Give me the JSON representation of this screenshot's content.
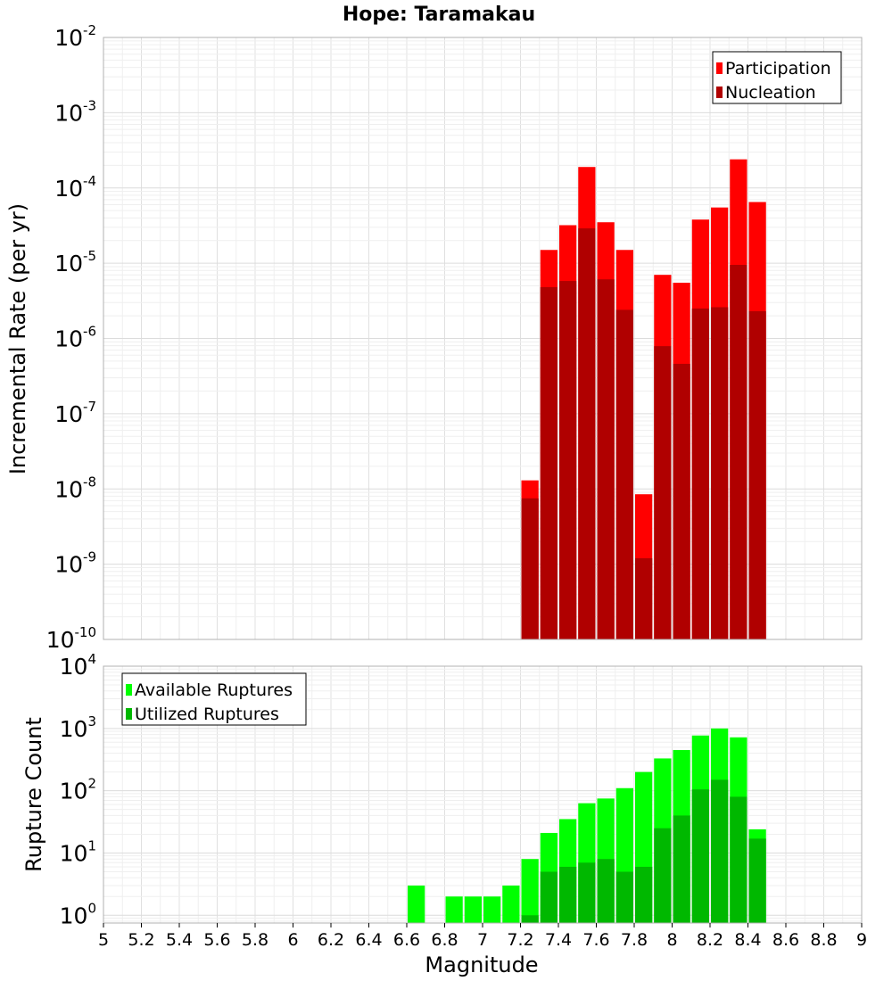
{
  "chart_data": [
    {
      "type": "bar",
      "title": "Hope: Taramakau",
      "xlabel": "",
      "ylabel": "Incremental Rate (per yr)",
      "yscale": "log",
      "ylim": [
        1e-10,
        0.01
      ],
      "xlim": [
        5,
        9
      ],
      "bin_width": 0.1,
      "grid": true,
      "legend_position": "top-right",
      "x": [
        7.25,
        7.35,
        7.45,
        7.55,
        7.65,
        7.75,
        7.85,
        7.95,
        8.05,
        8.15,
        8.25,
        8.35,
        8.45
      ],
      "series": [
        {
          "name": "Participation",
          "color": "#ff0000",
          "values": [
            1.3e-08,
            1.5e-05,
            3.2e-05,
            0.00019,
            3.5e-05,
            1.5e-05,
            8.5e-09,
            7e-06,
            5.5e-06,
            3.8e-05,
            5.5e-05,
            0.00024,
            6.5e-05
          ]
        },
        {
          "name": "Nucleation",
          "color": "#b00000",
          "values": [
            7.5e-09,
            4.8e-06,
            5.8e-06,
            2.9e-05,
            6.1e-06,
            2.4e-06,
            1.2e-09,
            7.9e-07,
            4.6e-07,
            2.5e-06,
            2.6e-06,
            9.5e-06,
            2.3e-06
          ]
        }
      ]
    },
    {
      "type": "bar",
      "title": "",
      "xlabel": "Magnitude",
      "ylabel": "Rupture Count",
      "yscale": "log",
      "ylim": [
        0.75,
        10000
      ],
      "xlim": [
        5,
        9
      ],
      "bin_width": 0.1,
      "grid": true,
      "legend_position": "top-left",
      "x_ticks": [
        "5",
        "5.2",
        "5.4",
        "5.6",
        "5.8",
        "6",
        "6.2",
        "6.4",
        "6.6",
        "6.8",
        "7",
        "7.2",
        "7.4",
        "7.6",
        "7.8",
        "8",
        "8.2",
        "8.4",
        "8.6",
        "8.8",
        "9"
      ],
      "x": [
        6.65,
        6.85,
        6.95,
        7.05,
        7.15,
        7.25,
        7.35,
        7.45,
        7.55,
        7.65,
        7.75,
        7.85,
        7.95,
        8.05,
        8.15,
        8.25,
        8.35,
        8.45
      ],
      "series": [
        {
          "name": "Available Ruptures",
          "color": "#00ff00",
          "values": [
            3,
            2,
            2,
            2,
            3,
            8,
            21,
            35,
            63,
            75,
            110,
            200,
            330,
            450,
            770,
            1000,
            720,
            24
          ]
        },
        {
          "name": "Utilized Ruptures",
          "color": "#00b800",
          "values": [
            0,
            0,
            0,
            0,
            0,
            1,
            5,
            6,
            7,
            8,
            5,
            6,
            25,
            40,
            105,
            150,
            80,
            17
          ]
        }
      ]
    }
  ]
}
